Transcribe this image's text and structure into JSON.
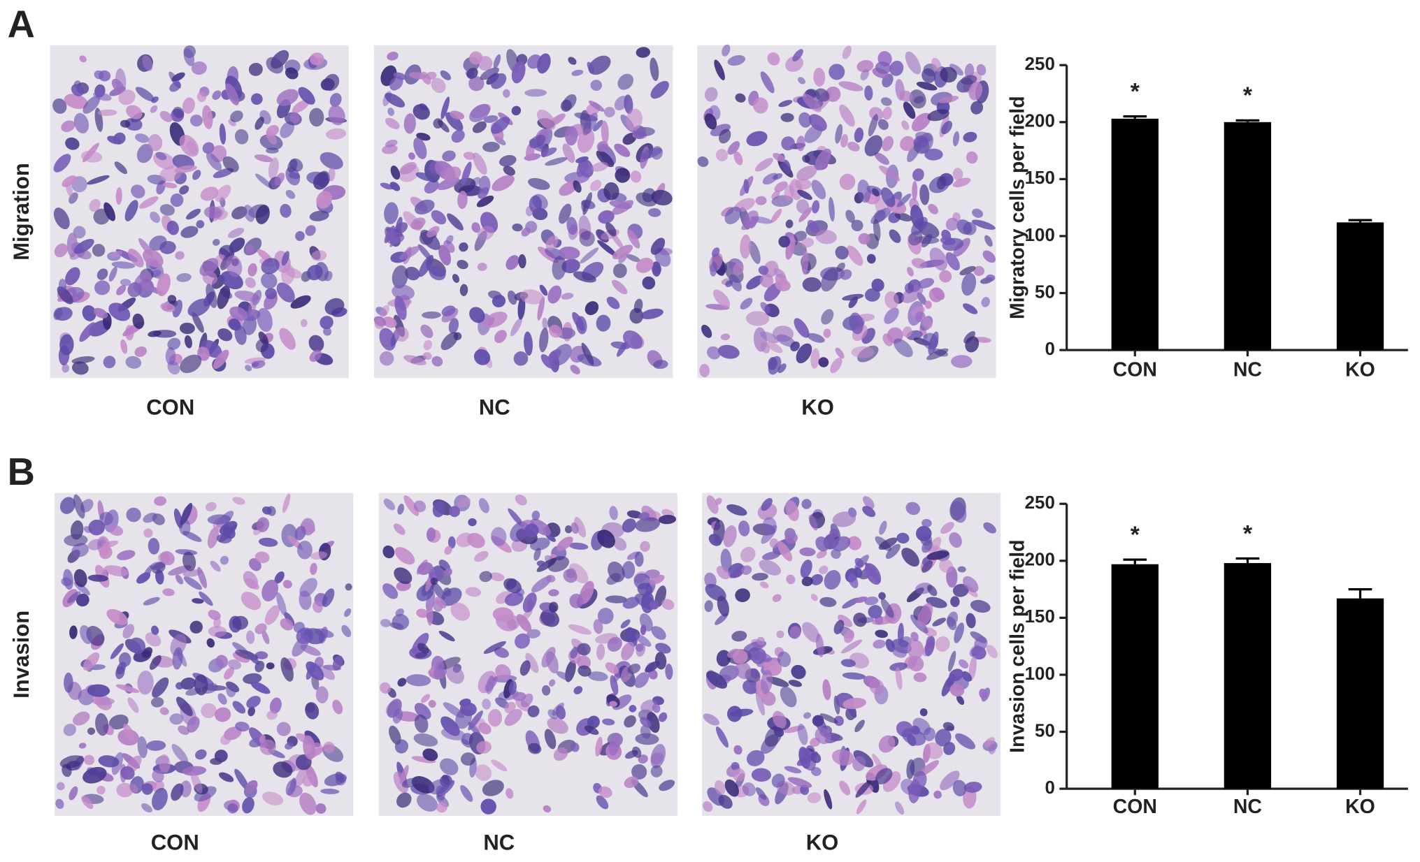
{
  "panels": [
    {
      "label": "A",
      "row_label": "Migration",
      "images": [
        "CON",
        "NC",
        "KO"
      ]
    },
    {
      "label": "B",
      "row_label": "Invasion",
      "images": [
        "CON",
        "NC",
        "KO"
      ]
    }
  ],
  "chart_data": [
    {
      "type": "bar",
      "ylabel": "Migratory cells per field",
      "categories": [
        "CON",
        "NC",
        "KO"
      ],
      "values": [
        203,
        200,
        112
      ],
      "errors": [
        2,
        1.5,
        2
      ],
      "annotations": [
        "*",
        "*",
        null
      ],
      "color": "#000000",
      "ylim": [
        0,
        250
      ],
      "yticks": [
        0,
        50,
        100,
        150,
        200,
        250
      ]
    },
    {
      "type": "bar",
      "ylabel": "Invasion cells per field",
      "categories": [
        "CON",
        "NC",
        "KO"
      ],
      "values": [
        197,
        198,
        167
      ],
      "errors": [
        4,
        4,
        8
      ],
      "annotations": [
        "*",
        "*",
        null
      ],
      "color": "#000000",
      "ylim": [
        0,
        250
      ],
      "yticks": [
        0,
        50,
        100,
        150,
        200,
        250
      ]
    }
  ]
}
